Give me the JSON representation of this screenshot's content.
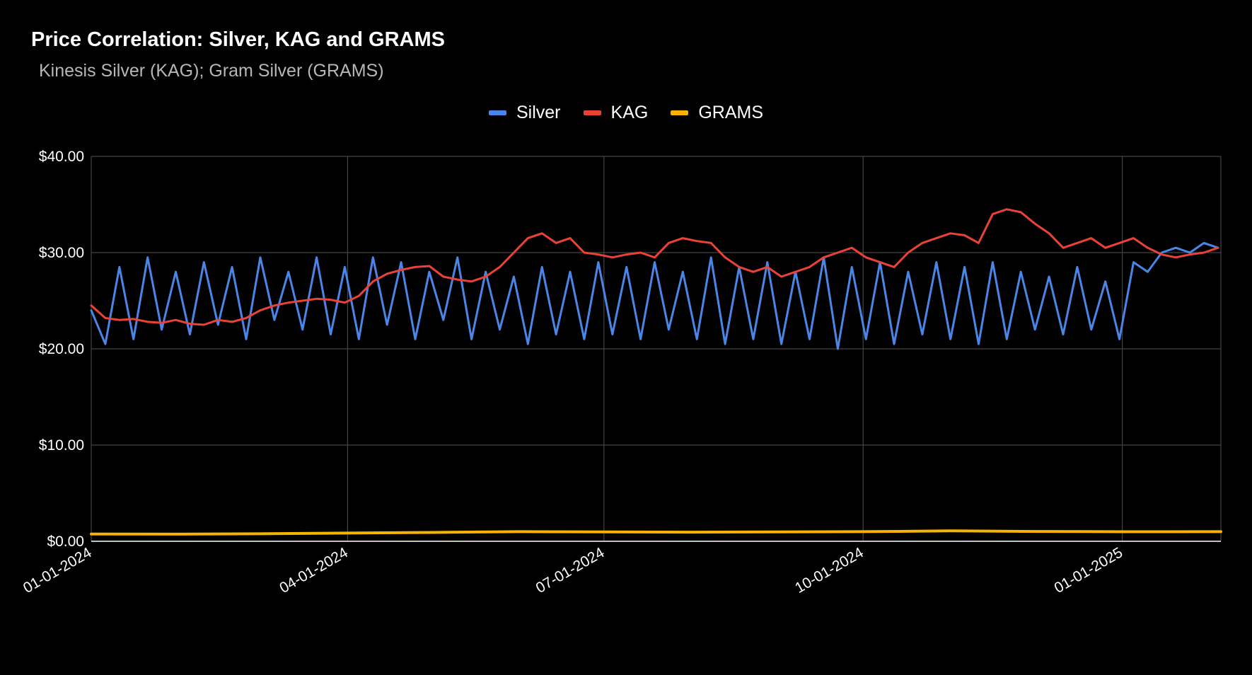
{
  "title": "Price Correlation: Silver, KAG and GRAMS",
  "subtitle": "Kinesis Silver (KAG); Gram Silver (GRAMS)",
  "colors": {
    "background": "#000000",
    "grid": "#444444",
    "silver": "#4a86e8",
    "kag": "#ea4335",
    "grams": "#f6b400"
  },
  "chart_data": {
    "type": "line",
    "title": "Price Correlation: Silver, KAG and GRAMS",
    "subtitle": "Kinesis Silver (KAG); Gram Silver (GRAMS)",
    "xlabel": "",
    "ylabel": "",
    "xlim": [
      "01-01-2024",
      "02-05-2025"
    ],
    "ylim": [
      0,
      40
    ],
    "y_ticks": [
      "$40.00",
      "$30.00",
      "$20.00",
      "$10.00",
      "$0.00"
    ],
    "x_ticks": [
      "01-01-2024",
      "04-01-2024",
      "07-01-2024",
      "10-01-2024",
      "01-01-2025"
    ],
    "grid": true,
    "legend": "top-center",
    "series": [
      {
        "name": "Silver",
        "color": "#4a86e8",
        "x": [
          "01-01-2024",
          "01-06-2024",
          "01-11-2024",
          "01-16-2024",
          "01-21-2024",
          "01-26-2024",
          "01-31-2024",
          "02-05-2024",
          "02-10-2024",
          "02-15-2024",
          "02-20-2024",
          "02-25-2024",
          "03-01-2024",
          "03-06-2024",
          "03-11-2024",
          "03-16-2024",
          "03-21-2024",
          "03-26-2024",
          "03-31-2024",
          "04-05-2024",
          "04-10-2024",
          "04-15-2024",
          "04-20-2024",
          "04-25-2024",
          "04-30-2024",
          "05-05-2024",
          "05-10-2024",
          "05-15-2024",
          "05-20-2024",
          "05-25-2024",
          "05-30-2024",
          "06-04-2024",
          "06-09-2024",
          "06-14-2024",
          "06-19-2024",
          "06-24-2024",
          "06-29-2024",
          "07-04-2024",
          "07-09-2024",
          "07-14-2024",
          "07-19-2024",
          "07-24-2024",
          "07-29-2024",
          "08-03-2024",
          "08-08-2024",
          "08-13-2024",
          "08-18-2024",
          "08-23-2024",
          "08-28-2024",
          "09-02-2024",
          "09-07-2024",
          "09-12-2024",
          "09-17-2024",
          "09-22-2024",
          "09-27-2024",
          "10-02-2024",
          "10-07-2024",
          "10-12-2024",
          "10-17-2024",
          "10-22-2024",
          "10-27-2024",
          "11-01-2024",
          "11-06-2024",
          "11-11-2024",
          "11-16-2024",
          "11-21-2024",
          "11-26-2024",
          "12-01-2024",
          "12-06-2024",
          "12-11-2024",
          "12-16-2024",
          "12-21-2024",
          "12-26-2024",
          "12-31-2024",
          "01-05-2025",
          "01-10-2025",
          "01-15-2025",
          "01-20-2025",
          "01-25-2025",
          "01-30-2025",
          "02-04-2025"
        ],
        "values": [
          24.0,
          20.5,
          28.5,
          21.0,
          29.5,
          22.0,
          28.0,
          21.5,
          29.0,
          22.5,
          28.5,
          21.0,
          29.5,
          23.0,
          28.0,
          22.0,
          29.5,
          21.5,
          28.5,
          21.0,
          29.5,
          22.5,
          29.0,
          21.0,
          28.0,
          23.0,
          29.5,
          21.0,
          28.0,
          22.0,
          27.5,
          20.5,
          28.5,
          21.5,
          28.0,
          21.0,
          29.0,
          21.5,
          28.5,
          21.0,
          29.0,
          22.0,
          28.0,
          21.0,
          29.5,
          20.5,
          28.5,
          21.0,
          29.0,
          20.5,
          28.0,
          21.0,
          29.5,
          20.0,
          28.5,
          21.0,
          29.0,
          20.5,
          28.0,
          21.5,
          29.0,
          21.0,
          28.5,
          20.5,
          29.0,
          21.0,
          28.0,
          22.0,
          27.5,
          21.5,
          28.5,
          22.0,
          27.0,
          21.0,
          29.0,
          28.0,
          30.0,
          30.5,
          30.0,
          31.0,
          30.5
        ]
      },
      {
        "name": "KAG",
        "color": "#ea4335",
        "x": [
          "01-01-2024",
          "01-06-2024",
          "01-11-2024",
          "01-16-2024",
          "01-21-2024",
          "01-26-2024",
          "01-31-2024",
          "02-05-2024",
          "02-10-2024",
          "02-15-2024",
          "02-20-2024",
          "02-25-2024",
          "03-01-2024",
          "03-06-2024",
          "03-11-2024",
          "03-16-2024",
          "03-21-2024",
          "03-26-2024",
          "03-31-2024",
          "04-05-2024",
          "04-10-2024",
          "04-15-2024",
          "04-20-2024",
          "04-25-2024",
          "04-30-2024",
          "05-05-2024",
          "05-10-2024",
          "05-15-2024",
          "05-20-2024",
          "05-25-2024",
          "05-30-2024",
          "06-04-2024",
          "06-09-2024",
          "06-14-2024",
          "06-19-2024",
          "06-24-2024",
          "06-29-2024",
          "07-04-2024",
          "07-09-2024",
          "07-14-2024",
          "07-19-2024",
          "07-24-2024",
          "07-29-2024",
          "08-03-2024",
          "08-08-2024",
          "08-13-2024",
          "08-18-2024",
          "08-23-2024",
          "08-28-2024",
          "09-02-2024",
          "09-07-2024",
          "09-12-2024",
          "09-17-2024",
          "09-22-2024",
          "09-27-2024",
          "10-02-2024",
          "10-07-2024",
          "10-12-2024",
          "10-17-2024",
          "10-22-2024",
          "10-27-2024",
          "11-01-2024",
          "11-06-2024",
          "11-11-2024",
          "11-16-2024",
          "11-21-2024",
          "11-26-2024",
          "12-01-2024",
          "12-06-2024",
          "12-11-2024",
          "12-16-2024",
          "12-21-2024",
          "12-26-2024",
          "12-31-2024",
          "01-05-2025",
          "01-10-2025",
          "01-15-2025",
          "01-20-2025",
          "01-25-2025",
          "01-30-2025",
          "02-04-2025"
        ],
        "values": [
          24.5,
          23.2,
          23.0,
          23.1,
          22.8,
          22.7,
          23.0,
          22.6,
          22.5,
          23.0,
          22.8,
          23.2,
          24.0,
          24.5,
          24.8,
          25.0,
          25.2,
          25.1,
          24.8,
          25.5,
          27.0,
          27.8,
          28.2,
          28.5,
          28.6,
          27.5,
          27.2,
          27.0,
          27.5,
          28.5,
          30.0,
          31.5,
          32.0,
          31.0,
          31.5,
          30.0,
          29.8,
          29.5,
          29.8,
          30.0,
          29.5,
          31.0,
          31.5,
          31.2,
          31.0,
          29.5,
          28.5,
          28.0,
          28.5,
          27.5,
          28.0,
          28.5,
          29.5,
          30.0,
          30.5,
          29.5,
          29.0,
          28.5,
          30.0,
          31.0,
          31.5,
          32.0,
          31.8,
          31.0,
          34.0,
          34.5,
          34.2,
          33.0,
          32.0,
          30.5,
          31.0,
          31.5,
          30.5,
          31.0,
          31.5,
          30.5,
          29.8,
          29.5,
          29.8,
          30.0,
          30.5
        ]
      },
      {
        "name": "GRAMS",
        "color": "#f6b400",
        "x": [
          "01-01-2024",
          "02-01-2024",
          "03-01-2024",
          "04-01-2024",
          "05-01-2024",
          "06-01-2024",
          "07-01-2024",
          "08-01-2024",
          "09-01-2024",
          "10-01-2024",
          "11-01-2024",
          "12-01-2024",
          "01-01-2025",
          "02-05-2025"
        ],
        "values": [
          0.75,
          0.74,
          0.78,
          0.85,
          0.92,
          1.0,
          0.98,
          0.95,
          0.97,
          1.0,
          1.08,
          1.02,
          0.99,
          1.0
        ]
      }
    ]
  }
}
